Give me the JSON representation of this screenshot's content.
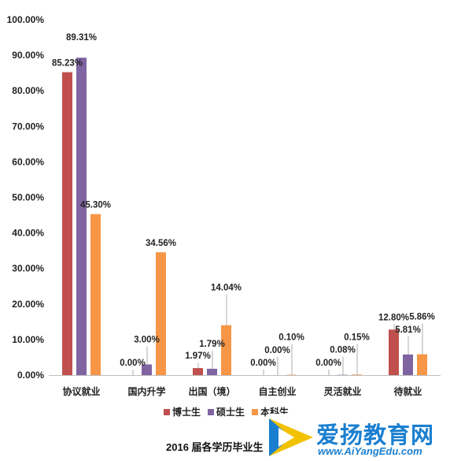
{
  "chart_data": {
    "type": "bar",
    "title": "2016 届各学历毕业生",
    "categories": [
      "协议就业",
      "国内升学",
      "出国（境）",
      "自主创业",
      "灵活就业",
      "待就业"
    ],
    "series": [
      {
        "name": "博士生",
        "color": "#c0504d",
        "values": [
          85.23,
          0.0,
          1.97,
          0.0,
          0.0,
          12.8
        ],
        "labels": [
          "85.23%",
          "0.00%",
          "1.97%",
          "0.00%",
          "0.00%",
          "12.80%"
        ]
      },
      {
        "name": "硕士生",
        "color": "#8064a2",
        "values": [
          89.31,
          3.0,
          1.79,
          0.0,
          0.08,
          5.81
        ],
        "labels": [
          "89.31%",
          "3.00%",
          "1.79%",
          "0.00%",
          "0.08%",
          "5.81%"
        ]
      },
      {
        "name": "本科生",
        "color": "#f79646",
        "values": [
          45.3,
          34.56,
          14.04,
          0.1,
          0.15,
          5.86
        ],
        "labels": [
          "45.30%",
          "34.56%",
          "14.04%",
          "0.10%",
          "0.15%",
          "5.86%"
        ]
      }
    ],
    "ylim": [
      0,
      100
    ],
    "yticks": [
      "0.00%",
      "10.00%",
      "20.00%",
      "30.00%",
      "40.00%",
      "50.00%",
      "60.00%",
      "70.00%",
      "80.00%",
      "90.00%",
      "100.00%"
    ],
    "legend": "bottom",
    "grid": false
  },
  "watermark": {
    "title": "爱扬教育网",
    "url": "www.AiYangEdu.com"
  }
}
